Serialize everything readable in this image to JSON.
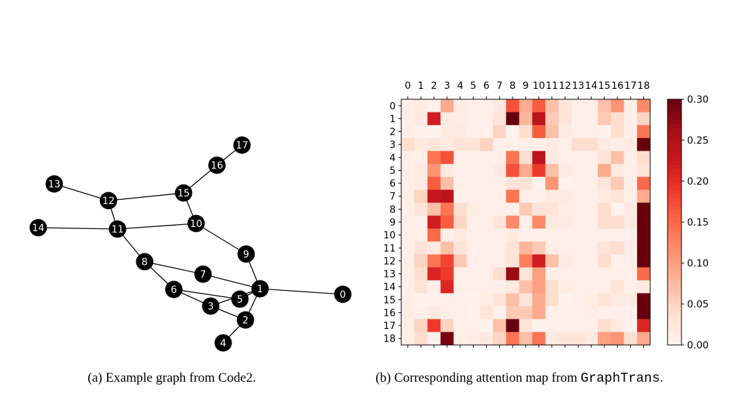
{
  "graph": {
    "nodes": [
      "0",
      "1",
      "2",
      "3",
      "4",
      "5",
      "6",
      "7",
      "8",
      "9",
      "10",
      "11",
      "12",
      "13",
      "14",
      "15",
      "16",
      "17"
    ],
    "edges": [
      [
        13,
        12
      ],
      [
        12,
        15
      ],
      [
        15,
        16
      ],
      [
        16,
        17
      ],
      [
        12,
        11
      ],
      [
        14,
        11
      ],
      [
        11,
        10
      ],
      [
        10,
        15
      ],
      [
        11,
        8
      ],
      [
        10,
        9
      ],
      [
        9,
        1
      ],
      [
        8,
        7
      ],
      [
        7,
        1
      ],
      [
        8,
        6
      ],
      [
        6,
        5
      ],
      [
        6,
        3
      ],
      [
        3,
        1
      ],
      [
        5,
        1
      ],
      [
        3,
        2
      ],
      [
        1,
        2
      ],
      [
        2,
        4
      ],
      [
        1,
        0
      ]
    ],
    "node_color": "#000000",
    "label_color": "#ffffff"
  },
  "captions": {
    "a": "(a) Example graph from Code2.",
    "b_prefix": "(b) Corresponding attention map from ",
    "b_code": "GraphTrans",
    "b_suffix": "."
  },
  "chart_data": {
    "type": "heatmap",
    "colormap": "Reds",
    "x_tick_labels": [
      "0",
      "1",
      "2",
      "3",
      "4",
      "5",
      "6",
      "7",
      "8",
      "9",
      "10",
      "11",
      "12",
      "13",
      "14",
      "15",
      "16",
      "17",
      "18"
    ],
    "y_tick_labels": [
      "0",
      "1",
      "2",
      "3",
      "4",
      "5",
      "6",
      "7",
      "8",
      "9",
      "10",
      "11",
      "12",
      "13",
      "14",
      "15",
      "16",
      "17",
      "18"
    ],
    "x_axis_position": "top",
    "colorbar": {
      "range": [
        0.0,
        0.3
      ],
      "ticks": [
        "0.00",
        "0.05",
        "0.10",
        "0.15",
        "0.20",
        "0.25",
        "0.30"
      ],
      "position": "right"
    },
    "values": [
      [
        0.01,
        0.02,
        0.005,
        0.09,
        0.015,
        0.01,
        0.01,
        0.02,
        0.17,
        0.09,
        0.16,
        0.07,
        0.03,
        0.01,
        0.01,
        0.07,
        0.11,
        0.01,
        0.12
      ],
      [
        0.01,
        0.02,
        0.22,
        0.02,
        0.015,
        0.01,
        0.01,
        0.03,
        0.3,
        0.08,
        0.24,
        0.06,
        0.03,
        0.01,
        0.01,
        0.06,
        0.04,
        0.01,
        0.05
      ],
      [
        0.01,
        0.005,
        0.005,
        0.02,
        0.02,
        0.01,
        0.01,
        0.05,
        0.005,
        0.04,
        0.16,
        0.07,
        0.02,
        0.01,
        0.01,
        0.005,
        0.04,
        0.01,
        0.14
      ],
      [
        0.04,
        0.02,
        0.03,
        0.02,
        0.03,
        0.03,
        0.05,
        0.01,
        0.01,
        0.01,
        0.01,
        0.02,
        0.01,
        0.04,
        0.04,
        0.02,
        0.01,
        0.02,
        0.3
      ],
      [
        0.01,
        0.01,
        0.14,
        0.17,
        0.01,
        0.01,
        0.01,
        0.01,
        0.14,
        0.04,
        0.24,
        0.02,
        0.01,
        0.01,
        0.01,
        0.03,
        0.07,
        0.01,
        0.04
      ],
      [
        0.01,
        0.02,
        0.11,
        0.02,
        0.01,
        0.01,
        0.01,
        0.02,
        0.17,
        0.09,
        0.19,
        0.07,
        0.02,
        0.01,
        0.01,
        0.09,
        0.02,
        0.01,
        0.03
      ],
      [
        0.01,
        0.02,
        0.16,
        0.07,
        0.01,
        0.01,
        0.01,
        0.01,
        0.03,
        0.03,
        0.005,
        0.11,
        0.005,
        0.01,
        0.01,
        0.03,
        0.06,
        0.01,
        0.15
      ],
      [
        0.01,
        0.05,
        0.23,
        0.24,
        0.005,
        0.01,
        0.01,
        0.01,
        0.14,
        0.01,
        0.01,
        0.02,
        0.02,
        0.01,
        0.01,
        0.02,
        0.03,
        0.01,
        0.09
      ],
      [
        0.01,
        0.03,
        0.07,
        0.14,
        0.04,
        0.015,
        0.01,
        0.01,
        0.01,
        0.06,
        0.03,
        0.03,
        0.015,
        0.01,
        0.01,
        0.04,
        0.005,
        0.02,
        0.3
      ],
      [
        0.01,
        0.01,
        0.22,
        0.16,
        0.05,
        0.01,
        0.01,
        0.03,
        0.12,
        0.01,
        0.12,
        0.02,
        0.02,
        0.01,
        0.01,
        0.04,
        0.04,
        0.02,
        0.3
      ],
      [
        0.01,
        0.01,
        0.15,
        0.01,
        0.02,
        0.01,
        0.01,
        0.01,
        0.02,
        0.01,
        0.01,
        0.01,
        0.01,
        0.01,
        0.01,
        0.01,
        0.01,
        0.01,
        0.3
      ],
      [
        0.01,
        0.03,
        0.02,
        0.07,
        0.03,
        0.01,
        0.01,
        0.01,
        0.03,
        0.08,
        0.06,
        0.015,
        0.01,
        0.01,
        0.01,
        0.03,
        0.04,
        0.01,
        0.3
      ],
      [
        0.01,
        0.05,
        0.14,
        0.18,
        0.06,
        0.01,
        0.01,
        0.01,
        0.03,
        0.13,
        0.22,
        0.07,
        0.02,
        0.01,
        0.01,
        0.04,
        0.005,
        0.01,
        0.3
      ],
      [
        0.01,
        0.04,
        0.21,
        0.19,
        0.01,
        0.01,
        0.01,
        0.04,
        0.27,
        0.03,
        0.1,
        0.01,
        0.01,
        0.01,
        0.01,
        0.01,
        0.01,
        0.01,
        0.15
      ],
      [
        0.01,
        0.03,
        0.01,
        0.21,
        0.01,
        0.01,
        0.01,
        0.01,
        0.02,
        0.07,
        0.1,
        0.04,
        0.015,
        0.01,
        0.01,
        0.01,
        0.03,
        0.01,
        0.02
      ],
      [
        0.01,
        0.005,
        0.005,
        0.01,
        0.005,
        0.005,
        0.015,
        0.03,
        0.07,
        0.03,
        0.09,
        0.04,
        0.005,
        0.01,
        0.015,
        0.03,
        0.02,
        0.02,
        0.3
      ],
      [
        0.015,
        0.01,
        0.02,
        0.01,
        0.01,
        0.005,
        0.03,
        0.005,
        0.06,
        0.06,
        0.09,
        0.01,
        0.01,
        0.01,
        0.015,
        0.01,
        0.01,
        0.01,
        0.3
      ],
      [
        0.01,
        0.05,
        0.19,
        0.05,
        0.01,
        0.01,
        0.005,
        0.07,
        0.3,
        0.03,
        0.005,
        0.01,
        0.01,
        0.01,
        0.01,
        0.04,
        0.02,
        0.005,
        0.21
      ],
      [
        0.01,
        0.04,
        0.005,
        0.29,
        0.01,
        0.015,
        0.02,
        0.05,
        0.14,
        0.07,
        0.14,
        0.02,
        0.03,
        0.03,
        0.02,
        0.1,
        0.11,
        0.04,
        0.09
      ]
    ]
  }
}
